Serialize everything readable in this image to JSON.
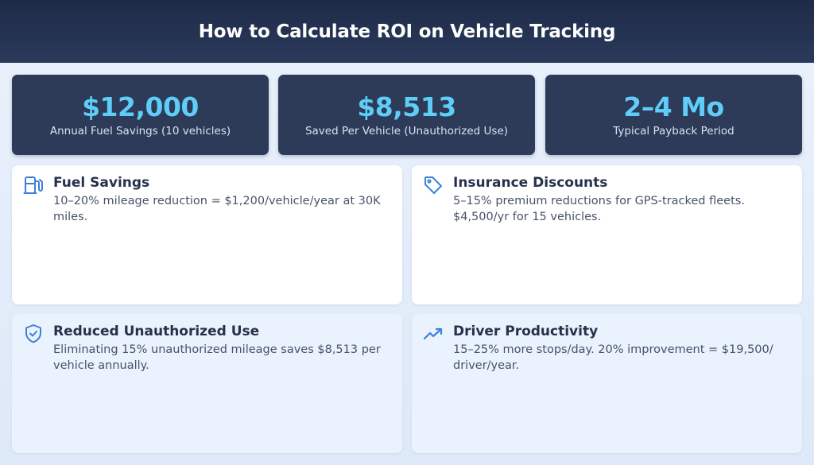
{
  "header": {
    "title": "How to Calculate ROI on Vehicle Tracking"
  },
  "stats": [
    {
      "value": "$12,000",
      "label": "Annual Fuel Savings (10 vehicles)"
    },
    {
      "value": "$8,513",
      "label": "Saved Per Vehicle (Unauthorized Use)"
    },
    {
      "value": "2–4 Mo",
      "label": "Typical Payback Period"
    }
  ],
  "cards": [
    {
      "title": "Fuel Savings",
      "text": "10–20% mileage reduction = $1,200/vehicle/year at 30K miles.",
      "icon": "fuel-pump-icon"
    },
    {
      "title": "Insurance Discounts",
      "text": "5–15% premium reductions for GPS-tracked fleets. $4,500/yr for 15 vehicles.",
      "icon": "tag-icon"
    },
    {
      "title": "Reduced Unauthorized Use",
      "text": "Eliminating 15% unauthorized mileage saves $8,513 per vehicle annually.",
      "icon": "shield-check-icon"
    },
    {
      "title": "Driver Productivity",
      "text": "15–25% more stops/day. 20% improvement = $19,500/ driver/year.",
      "icon": "trending-up-icon"
    }
  ],
  "colors": {
    "header_bg": "#1e2a47",
    "stat_bg": "#2d3a58",
    "stat_value": "#5ecdf7",
    "icon_accent": "#3b82d6"
  }
}
